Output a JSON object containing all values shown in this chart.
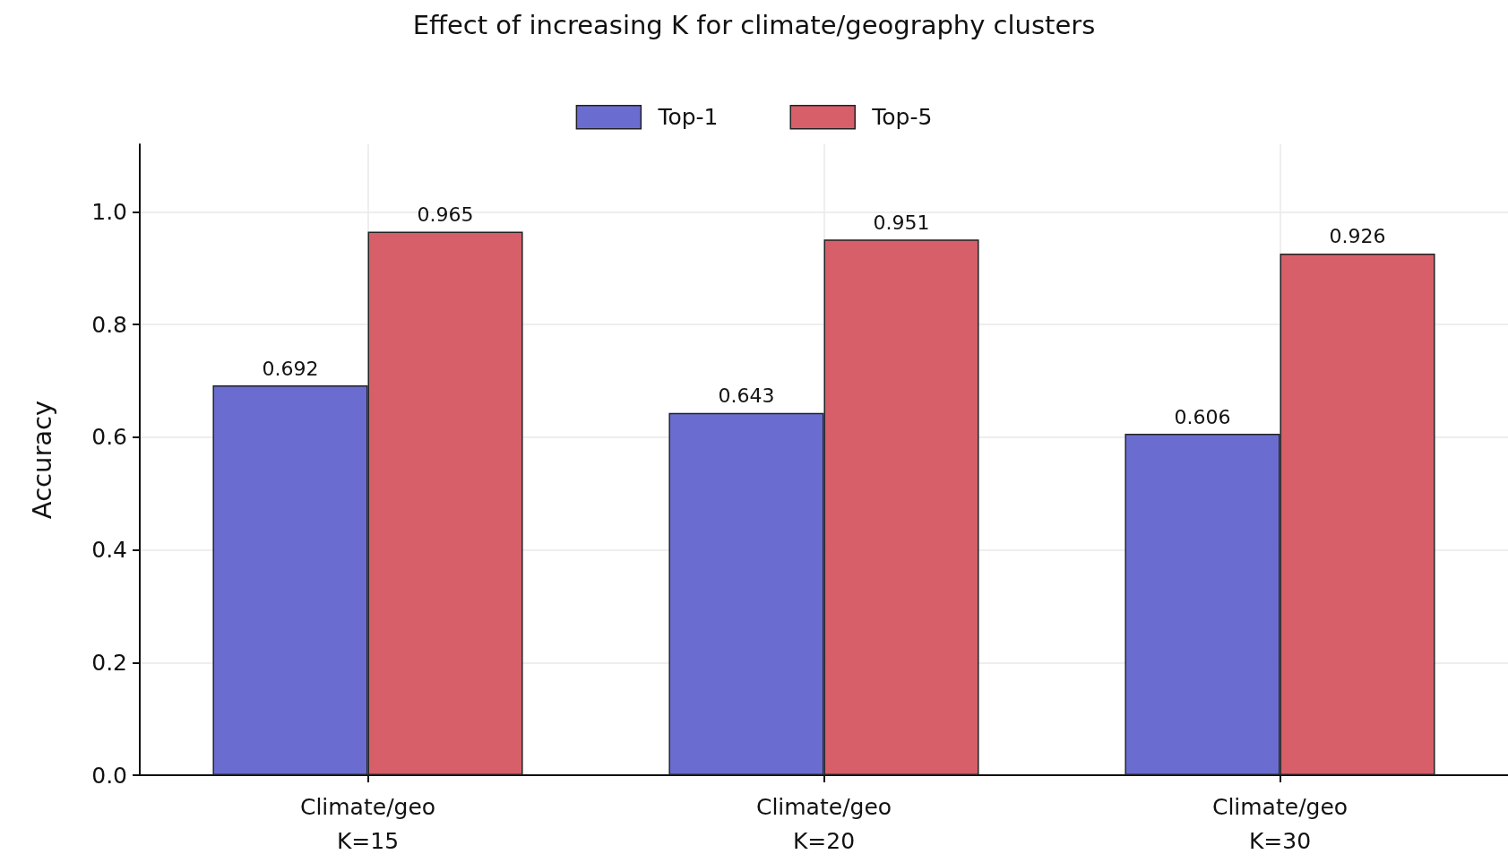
{
  "chart_data": {
    "type": "bar",
    "title": "Effect of increasing K for climate/geography clusters",
    "ylabel": "Accuracy",
    "categories": [
      "Climate/geo\nK=15",
      "Climate/geo\nK=20",
      "Climate/geo\nK=30"
    ],
    "series": [
      {
        "name": "Top-1",
        "color": "#6a6dcf",
        "values": [
          0.692,
          0.643,
          0.606
        ]
      },
      {
        "name": "Top-5",
        "color": "#d75f69",
        "values": [
          0.965,
          0.951,
          0.926
        ]
      }
    ],
    "ylim": [
      0,
      1.12
    ],
    "yticks": [
      {
        "value": 0,
        "label": "0.0"
      },
      {
        "value": 0.2,
        "label": "0.2"
      },
      {
        "value": 0.4,
        "label": "0.4"
      },
      {
        "value": 0.6,
        "label": "0.6"
      },
      {
        "value": 0.8,
        "label": "0.8"
      },
      {
        "value": 1,
        "label": "1.0"
      }
    ],
    "data_labels": true,
    "grid": true,
    "legend": "top"
  }
}
